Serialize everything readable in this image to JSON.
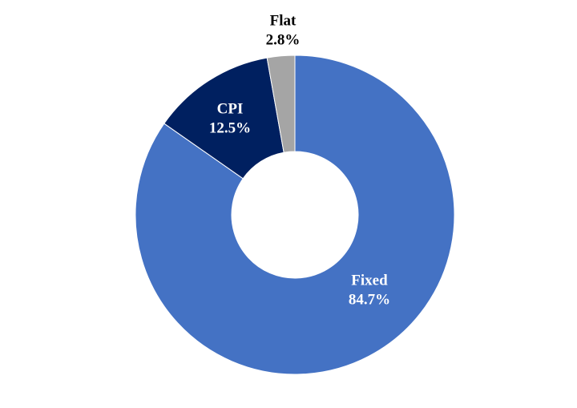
{
  "chart_data": {
    "type": "donut",
    "categories": [
      "Fixed",
      "CPI",
      "Flat"
    ],
    "values": [
      84.7,
      12.5,
      2.8
    ],
    "value_labels": [
      "84.7%",
      "12.5%",
      "2.8%"
    ],
    "colors": [
      "#4472c4",
      "#002060",
      "#a5a5a5"
    ],
    "label_colors": [
      "#ffffff",
      "#ffffff",
      "#000000"
    ]
  }
}
